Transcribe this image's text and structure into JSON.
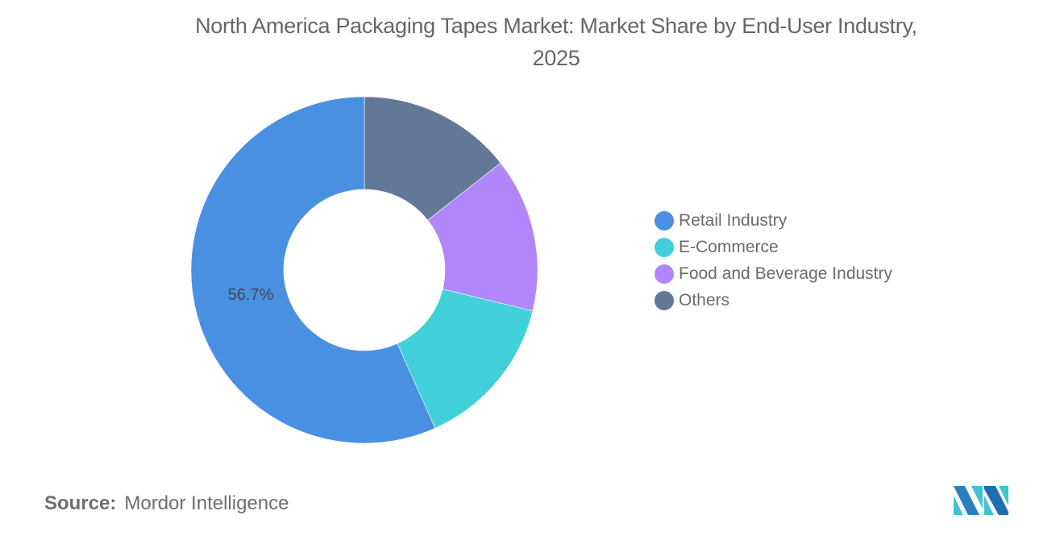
{
  "title": {
    "line1": "North America Packaging Tapes Market: Market Share by End-User Industry,",
    "line2": "2025"
  },
  "legend": {
    "items": [
      {
        "label": "Retail Industry",
        "color": "#4a90e2"
      },
      {
        "label": "E-Commerce",
        "color": "#41d0d9"
      },
      {
        "label": "Food and Beverage Industry",
        "color": "#b286fb"
      },
      {
        "label": "Others",
        "color": "#637797"
      }
    ]
  },
  "source": {
    "key": "Source:",
    "value": "Mordor Intelligence"
  },
  "logo": {
    "icon": "mordor-intelligence-logo",
    "colors": [
      "#2a7fc0",
      "#41c3d3",
      "#1f6fb0"
    ]
  },
  "chart_data": {
    "type": "pie",
    "variant": "donut",
    "title": "North America Packaging Tapes Market: Market Share by End-User Industry, 2025",
    "categories": [
      "Retail Industry",
      "E-Commerce",
      "Food and Beverage Industry",
      "Others"
    ],
    "values": [
      56.7,
      14.5,
      14.4,
      14.4
    ],
    "unit": "%",
    "colors": [
      "#4a90e2",
      "#41d0d9",
      "#b286fb",
      "#637797"
    ],
    "data_labels": [
      {
        "category": "Retail Industry",
        "text": "56.7%"
      }
    ],
    "legend_position": "right",
    "start_angle_deg": 0,
    "direction": "clockwise-from-top, drawn in order: Others, Food and Beverage Industry, E-Commerce, Retail Industry",
    "center": [
      452,
      335
    ],
    "outer_radius": 215,
    "inner_radius": 100,
    "source": "Mordor Intelligence"
  }
}
